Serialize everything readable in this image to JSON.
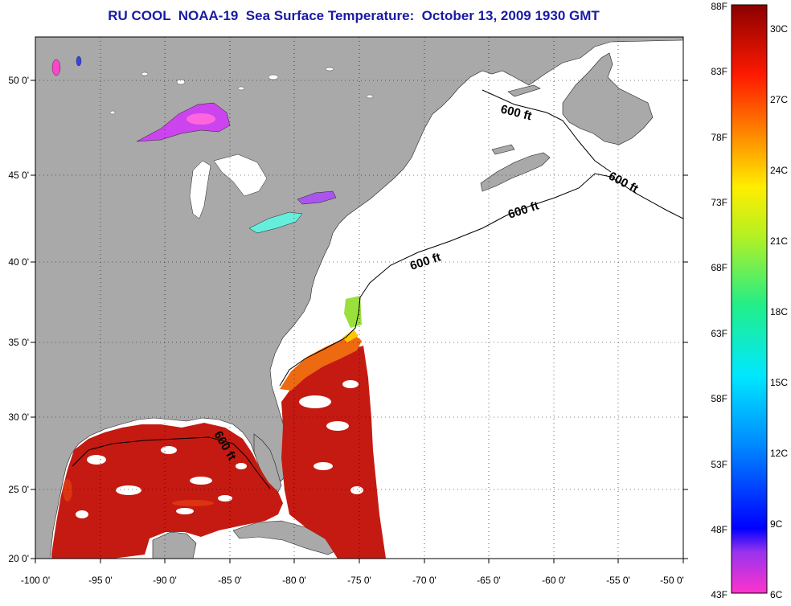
{
  "title": "RU COOL  NOAA-19  Sea Surface Temperature:  October 13, 2009 1930 GMT",
  "map": {
    "lon_range": [
      -100,
      -50
    ],
    "lat_range": [
      20,
      52.5
    ],
    "lon_ticks": [
      "-100 0'",
      "-95 0'",
      "-90 0'",
      "-85 0'",
      "-80 0'",
      "-75 0'",
      "-70 0'",
      "-65 0'",
      "-60 0'",
      "-55 0'",
      "-50 0'"
    ],
    "lat_ticks": [
      "20 0'",
      "25 0'",
      "30 0'",
      "35 0'",
      "40 0'",
      "45 0'",
      "50 0'"
    ],
    "isobath_labels": [
      "600 ft",
      "600 ft",
      "600 ft",
      "600 ft",
      "600 ft"
    ],
    "colors": {
      "land": "#a9a9a9",
      "ocean_nodata": "#ffffff",
      "gulf_sst": "#c41a12",
      "gulf_stream": "#ee6a10",
      "shelf_green": "#9ae03c"
    }
  },
  "colorbar": {
    "fahrenheit_labels": [
      "88F",
      "83F",
      "78F",
      "73F",
      "68F",
      "63F",
      "58F",
      "53F",
      "48F",
      "43F"
    ],
    "celsius_labels": [
      "30C",
      "27C",
      "24C",
      "21C",
      "18C",
      "15C",
      "12C",
      "9C",
      "6C"
    ],
    "range_f": [
      43,
      88
    ],
    "range_c": [
      6,
      31.1
    ]
  }
}
